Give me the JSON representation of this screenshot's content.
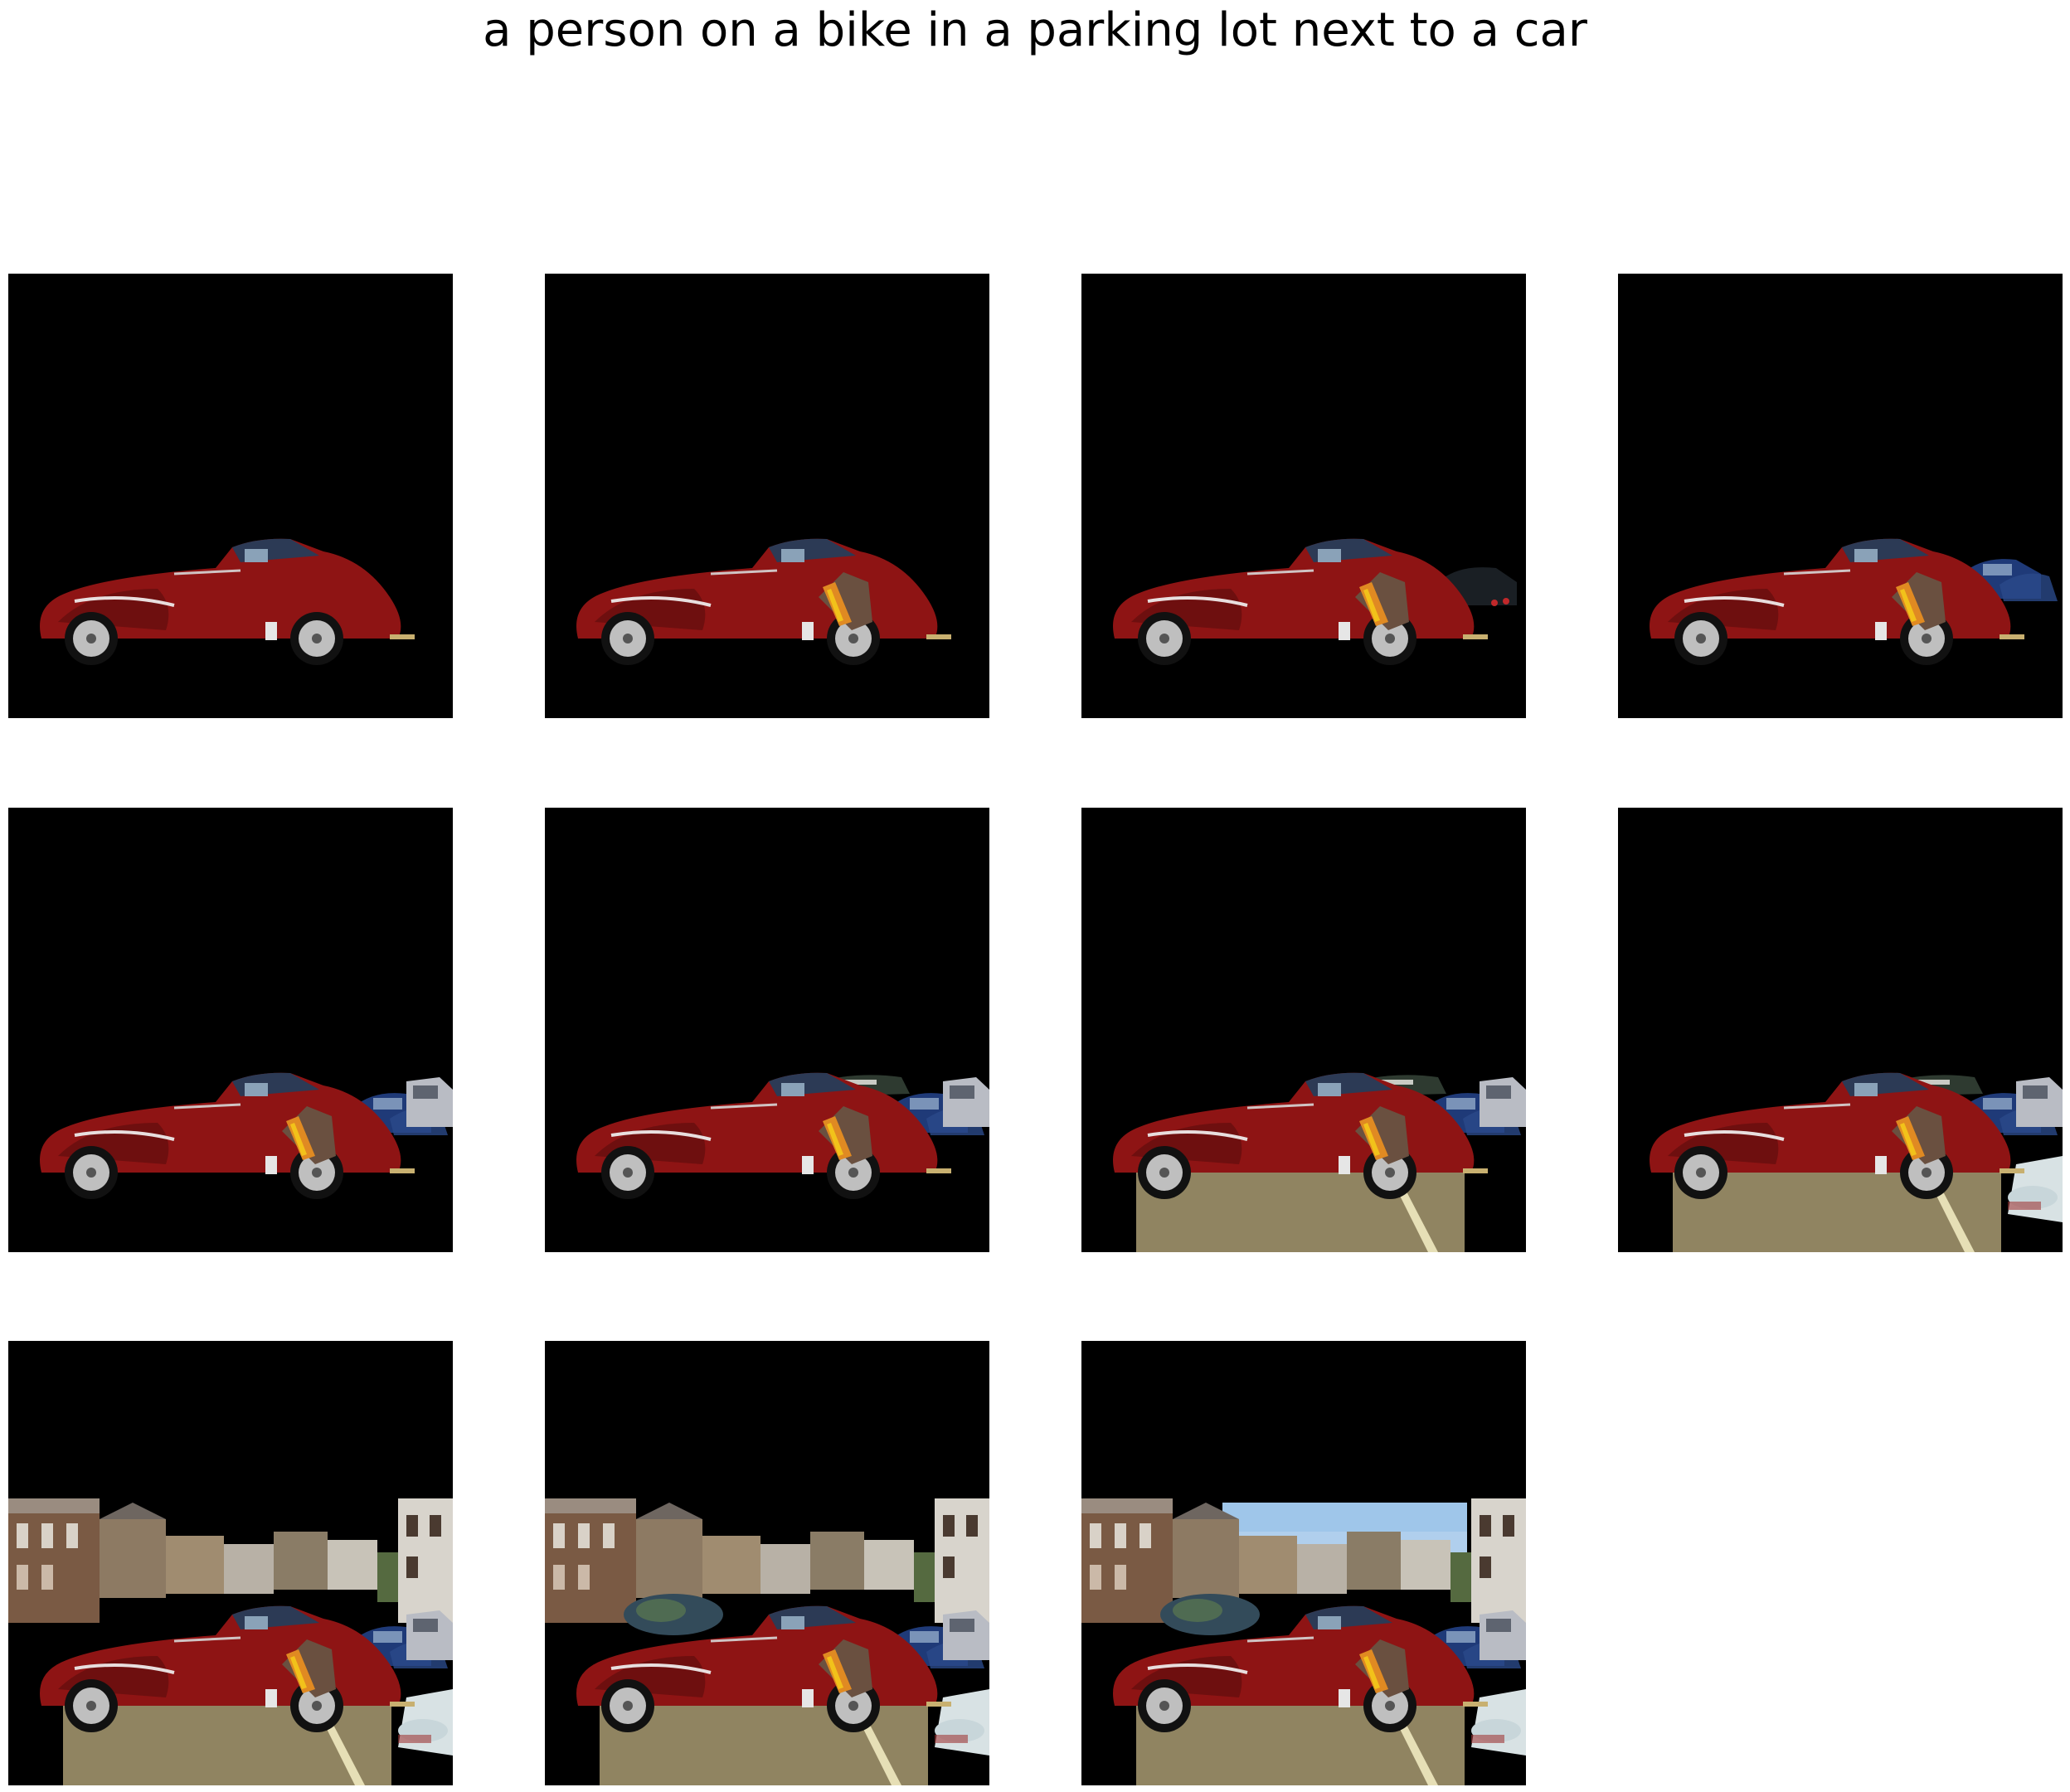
{
  "caption": "a person on a bike in a parking lot next to a car",
  "colors": {
    "background": "#000000",
    "car_body": "#8e1414",
    "car_roof": "#2c3a55",
    "ground": "#8a7e5a",
    "sky": "#9fc6ea",
    "houses": "#6b5a4a"
  },
  "frames": [
    {
      "step": 1,
      "layers": [
        "car"
      ]
    },
    {
      "step": 2,
      "layers": [
        "car",
        "person"
      ]
    },
    {
      "step": 3,
      "layers": [
        "car",
        "person",
        "dark-car"
      ]
    },
    {
      "step": 4,
      "layers": [
        "car",
        "person",
        "blue-car"
      ]
    },
    {
      "step": 5,
      "layers": [
        "car",
        "person",
        "blue-car",
        "grey-car"
      ]
    },
    {
      "step": 6,
      "layers": [
        "car",
        "person",
        "blue-car",
        "grey-car",
        "green-car"
      ]
    },
    {
      "step": 7,
      "layers": [
        "car",
        "person",
        "blue-car",
        "grey-car",
        "green-car",
        "ground"
      ]
    },
    {
      "step": 8,
      "layers": [
        "car",
        "person",
        "blue-car",
        "grey-car",
        "green-car",
        "ground",
        "bike-debris"
      ]
    },
    {
      "step": 9,
      "layers": [
        "car",
        "person",
        "blue-car",
        "grey-car",
        "ground",
        "bike-debris",
        "houses"
      ]
    },
    {
      "step": 10,
      "layers": [
        "car",
        "person",
        "blue-car",
        "grey-car",
        "ground",
        "bike-debris",
        "houses",
        "bush"
      ]
    },
    {
      "step": 11,
      "layers": [
        "car",
        "person",
        "blue-car",
        "grey-car",
        "ground",
        "bike-debris",
        "houses",
        "bush",
        "sky"
      ]
    }
  ]
}
